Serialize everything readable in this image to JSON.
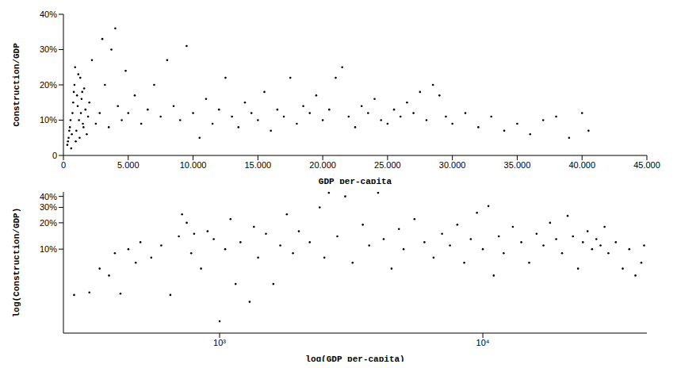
{
  "chart_data": [
    {
      "type": "scatter",
      "x_label": "GDP per-capita",
      "y_label": "Construction/GDP",
      "color": "#000000",
      "marker": "dot",
      "grid": false,
      "xlim": [
        0,
        45000
      ],
      "xticks": [
        0,
        {
          "value": 5000,
          "label": "5.000"
        },
        {
          "value": 10000,
          "label": "10.000"
        },
        {
          "value": 15000,
          "label": "15.000"
        },
        {
          "value": 20000,
          "label": "20.000"
        },
        {
          "value": 25000,
          "label": "25.000"
        },
        {
          "value": 30000,
          "label": "30.000"
        },
        {
          "value": 35000,
          "label": "35.000"
        },
        {
          "value": 40000,
          "label": "40.000"
        },
        {
          "value": 45000,
          "label": "45.000"
        }
      ],
      "ylim": [
        0,
        40
      ],
      "yticks": [
        0,
        {
          "value": 10,
          "label": "10%"
        },
        {
          "value": 20,
          "label": "20%"
        },
        {
          "value": 30,
          "label": "30%"
        },
        {
          "value": 40,
          "label": "40%"
        }
      ],
      "x": [
        300,
        350,
        400,
        450,
        500,
        550,
        600,
        650,
        700,
        750,
        800,
        850,
        900,
        950,
        1000,
        1050,
        1100,
        1150,
        1200,
        1250,
        1300,
        1350,
        1400,
        1450,
        1500,
        1550,
        1600,
        1700,
        1800,
        1900,
        2000,
        2200,
        2500,
        2800,
        3000,
        3200,
        3500,
        3700,
        4000,
        4200,
        4500,
        4800,
        5000,
        5500,
        6000,
        6500,
        7000,
        7500,
        8000,
        8500,
        9000,
        9500,
        10000,
        10500,
        11000,
        11500,
        12000,
        12500,
        13000,
        13500,
        14000,
        14500,
        15000,
        15500,
        16000,
        16500,
        17000,
        17500,
        18000,
        18500,
        19000,
        19500,
        20000,
        20500,
        21000,
        21500,
        22000,
        22500,
        23000,
        23500,
        24000,
        24500,
        25000,
        25500,
        26000,
        26500,
        27000,
        27500,
        28000,
        28500,
        29000,
        29500,
        30000,
        31000,
        32000,
        33000,
        34000,
        35000,
        36000,
        37000,
        38000,
        39000,
        40000,
        40500
      ],
      "values": [
        3,
        4,
        5,
        7,
        8,
        10,
        2,
        6,
        12,
        15,
        18,
        20,
        25,
        4,
        7,
        17,
        14,
        23,
        10,
        5,
        22,
        12,
        16,
        18,
        9,
        8,
        19,
        13,
        6,
        11,
        15,
        27,
        9,
        12,
        33,
        20,
        8,
        30,
        36,
        14,
        10,
        24,
        12,
        17,
        9,
        13,
        20,
        11,
        27,
        14,
        10,
        31,
        12,
        5,
        16,
        9,
        13,
        22,
        11,
        8,
        15,
        12,
        10,
        18,
        7,
        13,
        11,
        22,
        9,
        14,
        12,
        17,
        10,
        13,
        22,
        25,
        11,
        8,
        14,
        12,
        16,
        10,
        9,
        13,
        11,
        15,
        12,
        18,
        10,
        20,
        17,
        11,
        9,
        12,
        8,
        11,
        7,
        9,
        6,
        10,
        11,
        5,
        12,
        7
      ]
    },
    {
      "type": "scatter",
      "x_label": "log(GDP per-capita)",
      "y_label": "log(Construction/GDP)",
      "color": "#000000",
      "marker": "dot",
      "grid": false,
      "log": true,
      "xlim": [
        255,
        42000
      ],
      "xticks": [
        {
          "value": 1000,
          "label": "10³"
        },
        {
          "value": 10000,
          "label": "10⁴"
        }
      ],
      "ylim": [
        1.1,
        45
      ],
      "yticks": [
        {
          "value": 10,
          "label": "10%"
        },
        {
          "value": 20,
          "label": "20%"
        },
        {
          "value": 30,
          "label": "30%"
        },
        {
          "value": 40,
          "label": "40%"
        }
      ],
      "x": [
        280,
        320,
        350,
        380,
        400,
        420,
        450,
        480,
        500,
        550,
        600,
        650,
        700,
        720,
        750,
        780,
        800,
        850,
        900,
        950,
        1000,
        1050,
        1100,
        1150,
        1200,
        1300,
        1350,
        1400,
        1500,
        1600,
        1700,
        1800,
        1900,
        2000,
        2200,
        2400,
        2500,
        2600,
        2800,
        3000,
        3200,
        3500,
        3700,
        4000,
        4200,
        4500,
        4800,
        5000,
        5500,
        6000,
        6500,
        7000,
        7500,
        8000,
        8500,
        9000,
        9500,
        10000,
        10500,
        11000,
        11500,
        12000,
        13000,
        14000,
        15000,
        16000,
        17000,
        18000,
        19000,
        20000,
        21000,
        22000,
        23000,
        24000,
        25000,
        26000,
        27000,
        28000,
        29000,
        30000,
        32000,
        34000,
        36000,
        38000,
        40000,
        41000
      ],
      "values": [
        3,
        3.2,
        6,
        5,
        9,
        3.1,
        10,
        7,
        12,
        8,
        11,
        3,
        14,
        25,
        20,
        9,
        15,
        6,
        16,
        13,
        1.5,
        10,
        22,
        4,
        12,
        2.5,
        18,
        8,
        15,
        4,
        11,
        25,
        9,
        16,
        12,
        30,
        8,
        44,
        14,
        40,
        7,
        19,
        11,
        44,
        13,
        6,
        17,
        10,
        22,
        12,
        8,
        15,
        11,
        19,
        7,
        13,
        26,
        10,
        31,
        5,
        14,
        9,
        18,
        12,
        7,
        15,
        11,
        20,
        13,
        9,
        24,
        14,
        6,
        12,
        16,
        10,
        13,
        11,
        18,
        9,
        12,
        6,
        10,
        5,
        7,
        11
      ]
    }
  ]
}
